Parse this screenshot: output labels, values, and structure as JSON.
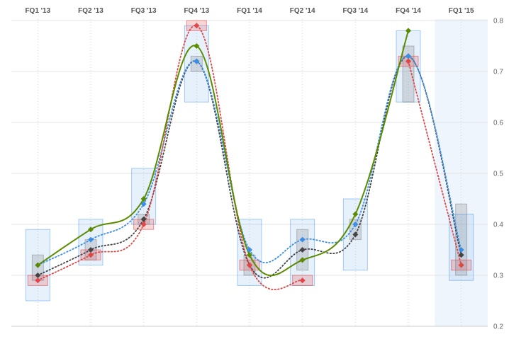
{
  "chart_data": {
    "type": "line",
    "categories": [
      "FQ1 '13",
      "FQ2 '13",
      "FQ3 '13",
      "FQ4 '13",
      "FQ1 '14",
      "FQ2 '14",
      "FQ3 '14",
      "FQ4 '14",
      "FQ1 '15"
    ],
    "y_ticks": [
      "0.8",
      "0.7",
      "0.6",
      "0.5",
      "0.4",
      "0.3",
      "0.2"
    ],
    "ylim": [
      0.2,
      0.8
    ],
    "grid": true,
    "highlighted_category": "FQ1 '15",
    "series": [
      {
        "key": "green",
        "color": "#5b8c00",
        "style": "solid",
        "values": [
          0.32,
          0.39,
          0.45,
          0.75,
          0.34,
          0.33,
          0.42,
          0.78,
          null
        ]
      },
      {
        "key": "blue",
        "color": "#3a8ee6",
        "style": "dotted",
        "values": [
          0.32,
          0.37,
          0.44,
          0.72,
          0.35,
          0.37,
          0.4,
          0.73,
          0.35
        ],
        "range_boxes": [
          [
            0.25,
            0.39
          ],
          [
            0.32,
            0.41
          ],
          [
            0.4,
            0.51
          ],
          [
            0.64,
            0.79
          ],
          [
            0.28,
            0.41
          ],
          [
            0.28,
            0.41
          ],
          [
            0.31,
            0.45
          ],
          [
            0.64,
            0.78
          ],
          [
            0.29,
            0.42
          ]
        ]
      },
      {
        "key": "red",
        "color": "#e04646",
        "style": "dotted",
        "values": [
          0.29,
          0.34,
          0.4,
          0.79,
          0.32,
          0.29,
          null,
          0.72,
          0.32
        ],
        "range_boxes": [
          [
            0.28,
            0.3
          ],
          [
            0.33,
            0.35
          ],
          [
            0.39,
            0.41
          ],
          [
            0.78,
            0.8
          ],
          [
            0.31,
            0.33
          ],
          [
            0.28,
            0.3
          ],
          null,
          [
            0.71,
            0.73
          ],
          [
            0.31,
            0.33
          ]
        ]
      },
      {
        "key": "dark",
        "color": "#444444",
        "style": "dotted",
        "values": [
          0.3,
          0.35,
          0.41,
          0.72,
          0.32,
          0.35,
          0.38,
          0.73,
          0.34
        ],
        "range_boxes": [
          [
            0.29,
            0.34
          ],
          [
            0.33,
            0.37
          ],
          [
            0.4,
            0.42
          ],
          [
            0.7,
            0.73
          ],
          [
            0.3,
            0.34
          ],
          [
            0.31,
            0.39
          ],
          [
            0.37,
            0.41
          ],
          [
            0.64,
            0.75
          ],
          [
            0.3,
            0.44
          ]
        ]
      }
    ]
  }
}
